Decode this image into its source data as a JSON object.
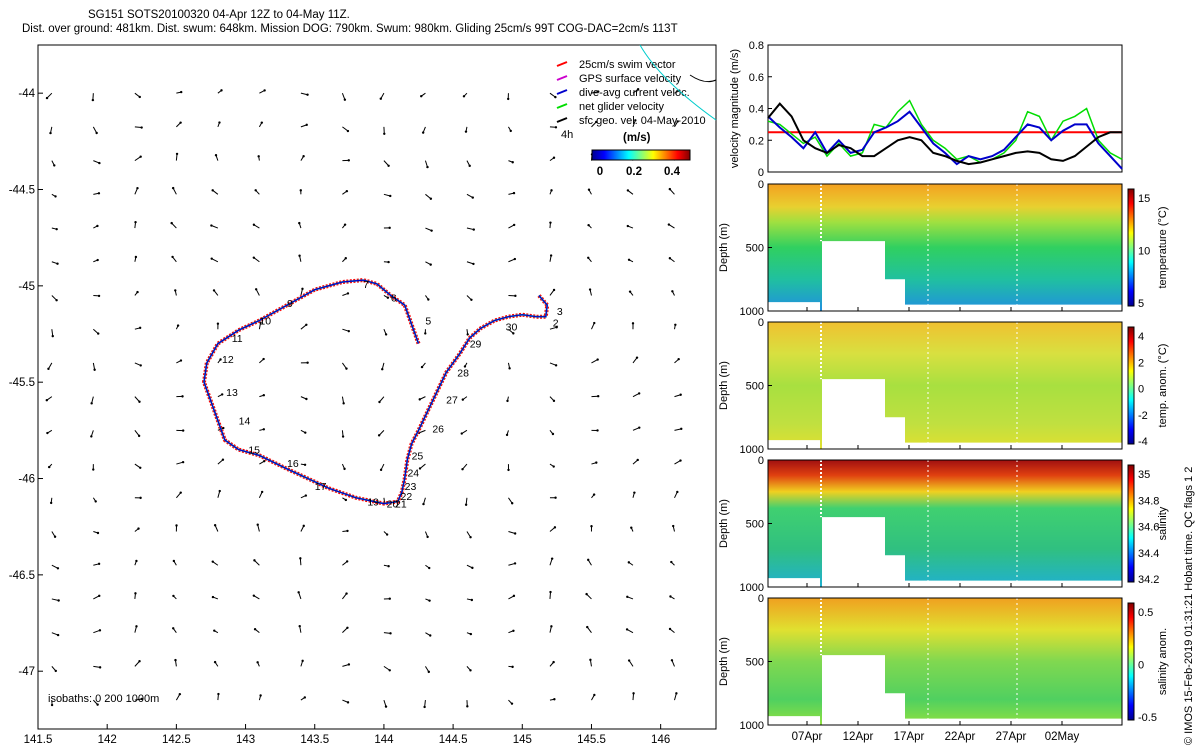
{
  "header": {
    "title_line1": "SG151 SOTS20100320 04-Apr 12Z to 04-May 11Z.",
    "title_line2": "Dist. over ground: 481km. Dist. swum: 648km. Mission DOG: 790km. Swum: 980km. Gliding 25cm/s 99T COG-DAC=2cm/s 113T"
  },
  "credit": "© IMOS 15-Feb-2019 01:31:21 Hobart time. QC flags 1 2",
  "colors": {
    "swim_vector": "#ff0000",
    "gps_surface": "#cc00cc",
    "dive_avg": "#0000cc",
    "net_glider": "#00dd00",
    "sfc_geo": "#000000"
  },
  "chart_data": [
    {
      "type": "line",
      "panel": "map",
      "title": "",
      "xlabel": "",
      "ylabel": "",
      "xlim": [
        141.5,
        146.4
      ],
      "ylim": [
        -47.3,
        -43.75
      ],
      "x_ticks": [
        "141.5",
        "142",
        "142.5",
        "143",
        "143.5",
        "144",
        "144.5",
        "145",
        "145.5",
        "146"
      ],
      "y_ticks": [
        "-44",
        "-44.5",
        "-45",
        "-45.5",
        "-46",
        "-46.5",
        "-47"
      ],
      "legend": {
        "placement": "top-right",
        "entries": [
          "25cm/s swim vector",
          "GPS surface velocity",
          "dive-avg current veloc.",
          "net glider velocity",
          "sfc geo. vel. 04-May-2010 4h"
        ]
      },
      "colorbar": {
        "label": "(m/s)",
        "ticks": [
          "0",
          "0.2",
          "0.4"
        ]
      },
      "isobaths_note": "isobaths: 0 200 1000m",
      "track": {
        "lon": [
          144.25,
          144.2,
          144.15,
          144.05,
          143.95,
          143.85,
          143.7,
          143.5,
          143.3,
          143.1,
          142.95,
          142.8,
          142.72,
          142.7,
          142.75,
          142.8,
          142.85,
          142.95,
          143.1,
          143.3,
          143.45,
          143.6,
          143.8,
          144.0,
          144.1,
          144.13,
          144.15,
          144.17,
          144.2,
          144.25,
          144.35,
          144.45,
          144.55,
          144.62,
          144.7,
          144.8,
          144.9,
          145.0,
          145.1,
          145.17,
          145.18,
          145.12
        ],
        "lat": [
          -45.3,
          -45.2,
          -45.1,
          -45.05,
          -44.99,
          -44.97,
          -44.98,
          -45.02,
          -45.1,
          -45.18,
          -45.23,
          -45.3,
          -45.4,
          -45.5,
          -45.6,
          -45.7,
          -45.8,
          -45.85,
          -45.88,
          -45.95,
          -46.0,
          -46.05,
          -46.1,
          -46.13,
          -46.12,
          -46.07,
          -46.0,
          -45.9,
          -45.82,
          -45.75,
          -45.6,
          -45.45,
          -45.35,
          -45.27,
          -45.22,
          -45.18,
          -45.16,
          -45.15,
          -45.16,
          -45.16,
          -45.1,
          -45.05
        ]
      },
      "waypoints": [
        {
          "label": "2",
          "lon": 145.22,
          "lat": -45.19
        },
        {
          "label": "3",
          "lon": 145.25,
          "lat": -45.13
        },
        {
          "label": "5",
          "lon": 144.3,
          "lat": -45.18
        },
        {
          "label": "6",
          "lon": 144.05,
          "lat": -45.06
        },
        {
          "label": "7",
          "lon": 143.85,
          "lat": -44.99
        },
        {
          "label": "9",
          "lon": 143.3,
          "lat": -45.09
        },
        {
          "label": "10",
          "lon": 143.1,
          "lat": -45.18
        },
        {
          "label": "11",
          "lon": 142.9,
          "lat": -45.27
        },
        {
          "label": "12",
          "lon": 142.83,
          "lat": -45.38
        },
        {
          "label": "13",
          "lon": 142.86,
          "lat": -45.55
        },
        {
          "label": "14",
          "lon": 142.95,
          "lat": -45.7
        },
        {
          "label": "15",
          "lon": 143.02,
          "lat": -45.85
        },
        {
          "label": "16",
          "lon": 143.3,
          "lat": -45.92
        },
        {
          "label": "17",
          "lon": 143.5,
          "lat": -46.04
        },
        {
          "label": "19",
          "lon": 143.88,
          "lat": -46.12
        },
        {
          "label": "20",
          "lon": 144.02,
          "lat": -46.13
        },
        {
          "label": "21",
          "lon": 144.08,
          "lat": -46.13
        },
        {
          "label": "22",
          "lon": 144.12,
          "lat": -46.09
        },
        {
          "label": "23",
          "lon": 144.15,
          "lat": -46.04
        },
        {
          "label": "24",
          "lon": 144.17,
          "lat": -45.97
        },
        {
          "label": "25",
          "lon": 144.2,
          "lat": -45.88
        },
        {
          "label": "26",
          "lon": 144.35,
          "lat": -45.74
        },
        {
          "label": "27",
          "lon": 144.45,
          "lat": -45.59
        },
        {
          "label": "28",
          "lon": 144.53,
          "lat": -45.45
        },
        {
          "label": "29",
          "lon": 144.62,
          "lat": -45.3
        },
        {
          "label": "30",
          "lon": 144.88,
          "lat": -45.21
        }
      ]
    },
    {
      "type": "line",
      "panel": "velocity",
      "title": "",
      "xlabel": "",
      "ylabel": "velocity magnitude (m/s)",
      "ylim": [
        0,
        0.8
      ],
      "y_ticks": [
        "0",
        "0.2",
        "0.4",
        "0.6",
        "0.8"
      ],
      "x": [
        0,
        1,
        2,
        3,
        4,
        5,
        6,
        7,
        8,
        9,
        10,
        11,
        12,
        13,
        14,
        15,
        16,
        17,
        18,
        19,
        20,
        21,
        22,
        23,
        24,
        25,
        26,
        27,
        28,
        29,
        30
      ],
      "series": [
        {
          "color": "#ff0000",
          "values": [
            0.25,
            0.25,
            0.25,
            0.25,
            0.25,
            0.25,
            0.25,
            0.25,
            0.25,
            0.25,
            0.25,
            0.25,
            0.25,
            0.25,
            0.25,
            0.25,
            0.25,
            0.25,
            0.25,
            0.25,
            0.25,
            0.25,
            0.25,
            0.25,
            0.25,
            0.25,
            0.25,
            0.25,
            0.25,
            0.25,
            0.25
          ]
        },
        {
          "color": "#00dd00",
          "values": [
            0.32,
            0.3,
            0.24,
            0.18,
            0.22,
            0.1,
            0.18,
            0.1,
            0.12,
            0.3,
            0.28,
            0.38,
            0.45,
            0.3,
            0.2,
            0.15,
            0.08,
            0.1,
            0.06,
            0.08,
            0.12,
            0.2,
            0.38,
            0.35,
            0.2,
            0.32,
            0.35,
            0.4,
            0.2,
            0.12,
            0.08
          ]
        },
        {
          "color": "#0000cc",
          "values": [
            0.35,
            0.28,
            0.22,
            0.15,
            0.25,
            0.12,
            0.2,
            0.12,
            0.14,
            0.25,
            0.28,
            0.32,
            0.38,
            0.28,
            0.18,
            0.12,
            0.05,
            0.1,
            0.08,
            0.1,
            0.14,
            0.22,
            0.3,
            0.28,
            0.2,
            0.26,
            0.3,
            0.3,
            0.18,
            0.1,
            0.02
          ]
        },
        {
          "color": "#000000",
          "values": [
            0.34,
            0.43,
            0.35,
            0.2,
            0.15,
            0.12,
            0.17,
            0.15,
            0.1,
            0.1,
            0.15,
            0.2,
            0.22,
            0.2,
            0.12,
            0.1,
            0.07,
            0.05,
            0.06,
            0.08,
            0.1,
            0.12,
            0.13,
            0.12,
            0.08,
            0.07,
            0.1,
            0.16,
            0.22,
            0.25,
            0.25
          ]
        }
      ]
    },
    {
      "type": "heatmap",
      "panel": "temperature",
      "ylabel": "Depth (m)",
      "y_ticks": [
        "0",
        "500",
        "1000"
      ],
      "colorbar_label": "temperature (°C)",
      "colorbar_ticks": [
        "5",
        "10",
        "15"
      ]
    },
    {
      "type": "heatmap",
      "panel": "temp_anomaly",
      "ylabel": "Depth (m)",
      "y_ticks": [
        "0",
        "500",
        "1000"
      ],
      "colorbar_label": "temp. anom. (°C)",
      "colorbar_ticks": [
        "-4",
        "-2",
        "0",
        "2",
        "4"
      ]
    },
    {
      "type": "heatmap",
      "panel": "salinity",
      "ylabel": "Depth (m)",
      "y_ticks": [
        "0",
        "500",
        "1000"
      ],
      "colorbar_label": "salinity",
      "colorbar_ticks": [
        "34.2",
        "34.4",
        "34.6",
        "34.8",
        "35"
      ]
    },
    {
      "type": "heatmap",
      "panel": "salinity_anomaly",
      "ylabel": "Depth (m)",
      "y_ticks": [
        "0",
        "500",
        "1000"
      ],
      "colorbar_label": "salinity anom.",
      "colorbar_ticks": [
        "-0.5",
        "0",
        "0.5"
      ],
      "x_ticks": [
        "07Apr",
        "12Apr",
        "17Apr",
        "22Apr",
        "27Apr",
        "02May"
      ]
    }
  ]
}
